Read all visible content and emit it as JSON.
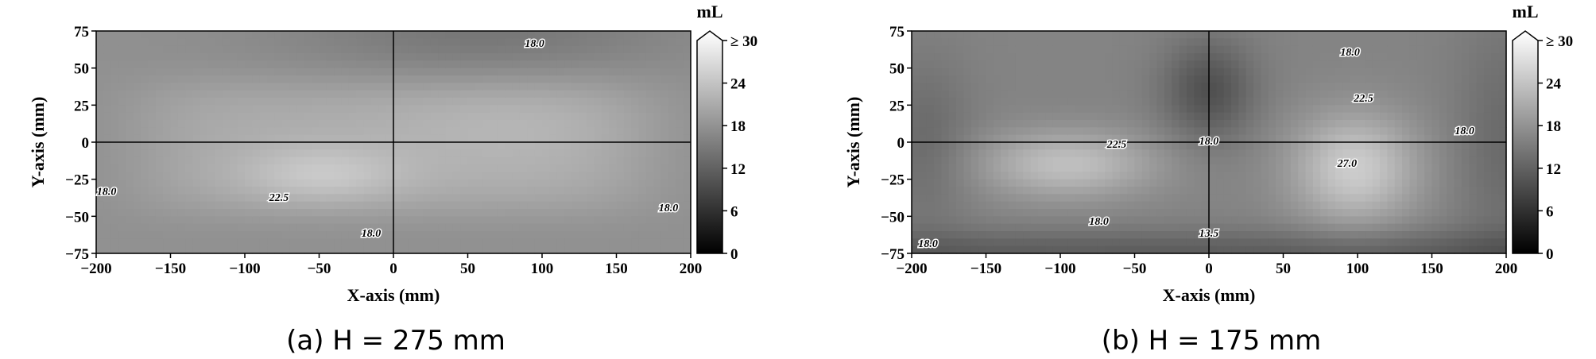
{
  "chart_data": [
    {
      "type": "heatmap",
      "caption": "(a) H = 275 mm",
      "xlabel": "X-axis (mm)",
      "ylabel": "Y-axis (mm)",
      "xlim": [
        -200,
        200
      ],
      "ylim": [
        -75,
        75
      ],
      "x_ticks": [
        -200,
        -150,
        -100,
        -50,
        0,
        50,
        100,
        150,
        200
      ],
      "y_ticks": [
        75,
        50,
        25,
        0,
        -25,
        -50,
        -75
      ],
      "colorbar": {
        "unit": "mL",
        "range": [
          0,
          30
        ],
        "ticks": [
          "0",
          "6",
          "12",
          "18",
          "24",
          "≥ 30"
        ],
        "colormap": "gray"
      },
      "contour_labels": [
        {
          "text": "18.0",
          "x": 95,
          "y": 67
        },
        {
          "text": "18.0",
          "x": -193,
          "y": -33
        },
        {
          "text": "22.5",
          "x": -77,
          "y": -37
        },
        {
          "text": "18.0",
          "x": -15,
          "y": -61
        },
        {
          "text": "18.0",
          "x": 185,
          "y": -44
        }
      ]
    },
    {
      "type": "heatmap",
      "caption": "(b) H = 175 mm",
      "xlabel": "X-axis (mm)",
      "ylabel": "Y-axis (mm)",
      "xlim": [
        -200,
        200
      ],
      "ylim": [
        -75,
        75
      ],
      "x_ticks": [
        -200,
        -150,
        -100,
        -50,
        0,
        50,
        100,
        150,
        200
      ],
      "y_ticks": [
        75,
        50,
        25,
        0,
        -25,
        -50,
        -75
      ],
      "colorbar": {
        "unit": "mL",
        "range": [
          0,
          30
        ],
        "ticks": [
          "0",
          "6",
          "12",
          "18",
          "24",
          "≥ 30"
        ],
        "colormap": "gray"
      },
      "contour_labels": [
        {
          "text": "18.0",
          "x": 95,
          "y": 61
        },
        {
          "text": "22.5",
          "x": 104,
          "y": 30
        },
        {
          "text": "22.5",
          "x": -62,
          "y": -1
        },
        {
          "text": "18.0",
          "x": 0,
          "y": 1
        },
        {
          "text": "27.0",
          "x": 93,
          "y": -14
        },
        {
          "text": "18.0",
          "x": 172,
          "y": 8
        },
        {
          "text": "18.0",
          "x": -74,
          "y": -53
        },
        {
          "text": "13.5",
          "x": 0,
          "y": -61
        },
        {
          "text": "18.0",
          "x": -189,
          "y": -68
        }
      ]
    }
  ]
}
